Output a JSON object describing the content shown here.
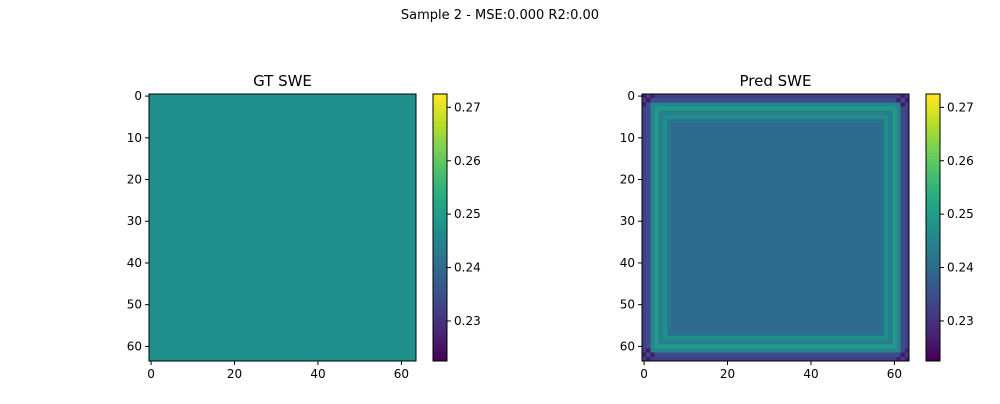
{
  "figure": {
    "suptitle": "Sample 2 - MSE:0.000 R2:0.00"
  },
  "chart_data": [
    {
      "type": "heatmap",
      "title": "GT SWE",
      "grid_size": 64,
      "xlim": [
        0,
        63
      ],
      "ylim": [
        0,
        63
      ],
      "xticks": [
        0,
        20,
        40,
        60
      ],
      "yticks": [
        0,
        10,
        20,
        30,
        40,
        50,
        60
      ],
      "colorbar": {
        "vmin": 0.2225,
        "vmax": 0.2725,
        "ticks": [
          0.23,
          0.24,
          0.25,
          0.26,
          0.27
        ],
        "tick_labels": [
          "0.23",
          "0.24",
          "0.25",
          "0.26",
          "0.27"
        ]
      },
      "cells": {
        "fill_value": 0.2475
      },
      "grid": false
    },
    {
      "type": "heatmap",
      "title": "Pred SWE",
      "grid_size": 64,
      "xlim": [
        0,
        63
      ],
      "ylim": [
        0,
        63
      ],
      "xticks": [
        0,
        20,
        40,
        60
      ],
      "yticks": [
        0,
        10,
        20,
        30,
        40,
        50,
        60
      ],
      "colorbar": {
        "vmin": 0.2225,
        "vmax": 0.2725,
        "ticks": [
          0.23,
          0.24,
          0.25,
          0.26,
          0.27
        ],
        "tick_labels": [
          "0.23",
          "0.24",
          "0.25",
          "0.26",
          "0.27"
        ]
      },
      "cells": {
        "fill_value": 0.24,
        "rings": [
          {
            "index": 0,
            "value": 0.232
          },
          {
            "index": 1,
            "value": 0.234
          },
          {
            "index": 2,
            "value": 0.245
          },
          {
            "index": 3,
            "value": 0.25
          },
          {
            "index": 4,
            "value": 0.244
          },
          {
            "index": 5,
            "value": 0.247
          },
          {
            "index": 6,
            "value": 0.242
          },
          {
            "index": 7,
            "value": 0.24
          }
        ],
        "corner_value": 0.226
      },
      "grid": false
    }
  ]
}
